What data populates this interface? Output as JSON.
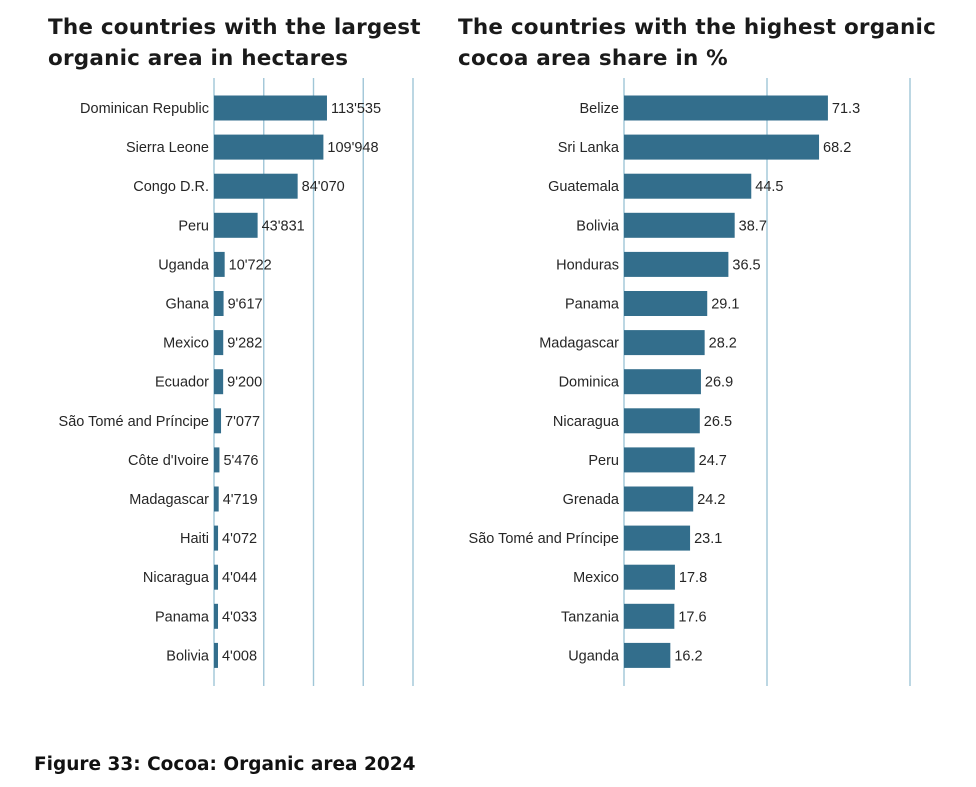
{
  "colors": {
    "bar": "#336e8c",
    "grid": "#9fc6d7",
    "text": "#262626"
  },
  "chart_data": [
    {
      "type": "bar",
      "orientation": "horizontal",
      "title": "The countries with the largest organic area in hectares",
      "title_lines": [
        "The countries with the largest",
        "organic area in hectares"
      ],
      "categories": [
        "Dominican Republic",
        "Sierra Leone",
        "Congo D.R.",
        "Peru",
        "Uganda",
        "Ghana",
        "Mexico",
        "Ecuador",
        "São Tomé and Príncipe",
        "Côte d'Ivoire",
        "Madagascar",
        "Haiti",
        "Nicaragua",
        "Panama",
        "Bolivia"
      ],
      "values": [
        113535,
        109948,
        84070,
        43831,
        10722,
        9617,
        9282,
        9200,
        7077,
        5476,
        4719,
        4072,
        4044,
        4033,
        4008
      ],
      "value_labels": [
        "113'535",
        "109'948",
        "84'070",
        "43'831",
        "10'722",
        "9'617",
        "9'282",
        "9'200",
        "7'077",
        "5'476",
        "4'719",
        "4'072",
        "4'044",
        "4'033",
        "4'008"
      ],
      "xlim": [
        0,
        200000
      ],
      "gridlines": [
        0,
        50000,
        100000,
        150000,
        200000
      ],
      "unit": "hectares"
    },
    {
      "type": "bar",
      "orientation": "horizontal",
      "title": "The countries with the highest organic cocoa area share in %",
      "title_lines": [
        "The countries with the highest organic",
        "cocoa area share in %"
      ],
      "categories": [
        "Belize",
        "Sri Lanka",
        "Guatemala",
        "Bolivia",
        "Honduras",
        "Panama",
        "Madagascar",
        "Dominica",
        "Nicaragua",
        "Peru",
        "Grenada",
        "São Tomé and Príncipe",
        "Mexico",
        "Tanzania",
        "Uganda"
      ],
      "values": [
        71.3,
        68.2,
        44.5,
        38.7,
        36.5,
        29.1,
        28.2,
        26.9,
        26.5,
        24.7,
        24.2,
        23.1,
        17.8,
        17.6,
        16.2
      ],
      "value_labels": [
        "71.3",
        "68.2",
        "44.5",
        "38.7",
        "36.5",
        "29.1",
        "28.2",
        "26.9",
        "26.5",
        "24.7",
        "24.2",
        "23.1",
        "17.8",
        "17.6",
        "16.2"
      ],
      "xlim": [
        0,
        100
      ],
      "gridlines": [
        0,
        50,
        100
      ],
      "unit": "%"
    }
  ],
  "caption": "Figure 33: Cocoa: Organic area 2024"
}
